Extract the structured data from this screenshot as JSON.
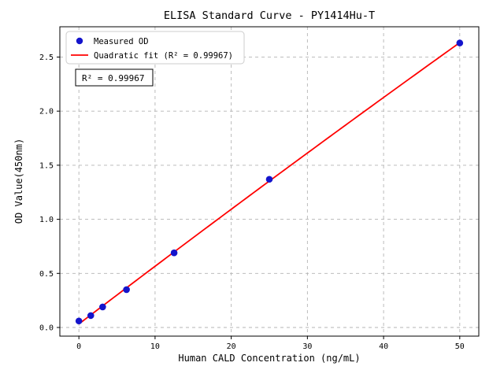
{
  "chart_data": {
    "type": "scatter",
    "title": "ELISA Standard Curve - PY1414Hu-T",
    "xlabel": "Human CALD Concentration (ng/mL)",
    "ylabel": "OD Value(450nm)",
    "xlim": [
      -2.5,
      52.5
    ],
    "ylim": [
      -0.08,
      2.78
    ],
    "xticks": [
      0,
      10,
      20,
      30,
      40,
      50
    ],
    "xtick_labels": [
      "0",
      "10",
      "20",
      "30",
      "40",
      "50"
    ],
    "yticks": [
      0,
      0.5,
      1.0,
      1.5,
      2.0,
      2.5
    ],
    "ytick_labels": [
      "0.0",
      "0.5",
      "1.0",
      "1.5",
      "2.0",
      "2.5"
    ],
    "grid": true,
    "grid_style": "dashed",
    "legend_position": "upper left",
    "series": [
      {
        "name": "Measured OD",
        "type": "scatter",
        "color": "#1414cc",
        "x": [
          0,
          1.56,
          3.12,
          6.25,
          12.5,
          25,
          50
        ],
        "y": [
          0.06,
          0.11,
          0.19,
          0.35,
          0.69,
          1.37,
          2.63
        ]
      },
      {
        "name": "Quadratic fit (R² = 0.99967)",
        "type": "quadratic-fit",
        "color": "#ff0000"
      }
    ],
    "r_squared": "0.99967",
    "annotation": "R² = 0.99967"
  },
  "colors": {
    "grid": "#b4b4b4",
    "frame": "#000000",
    "legend_border": "#cccccc",
    "annotation_border": "#000000",
    "background": "#ffffff"
  }
}
